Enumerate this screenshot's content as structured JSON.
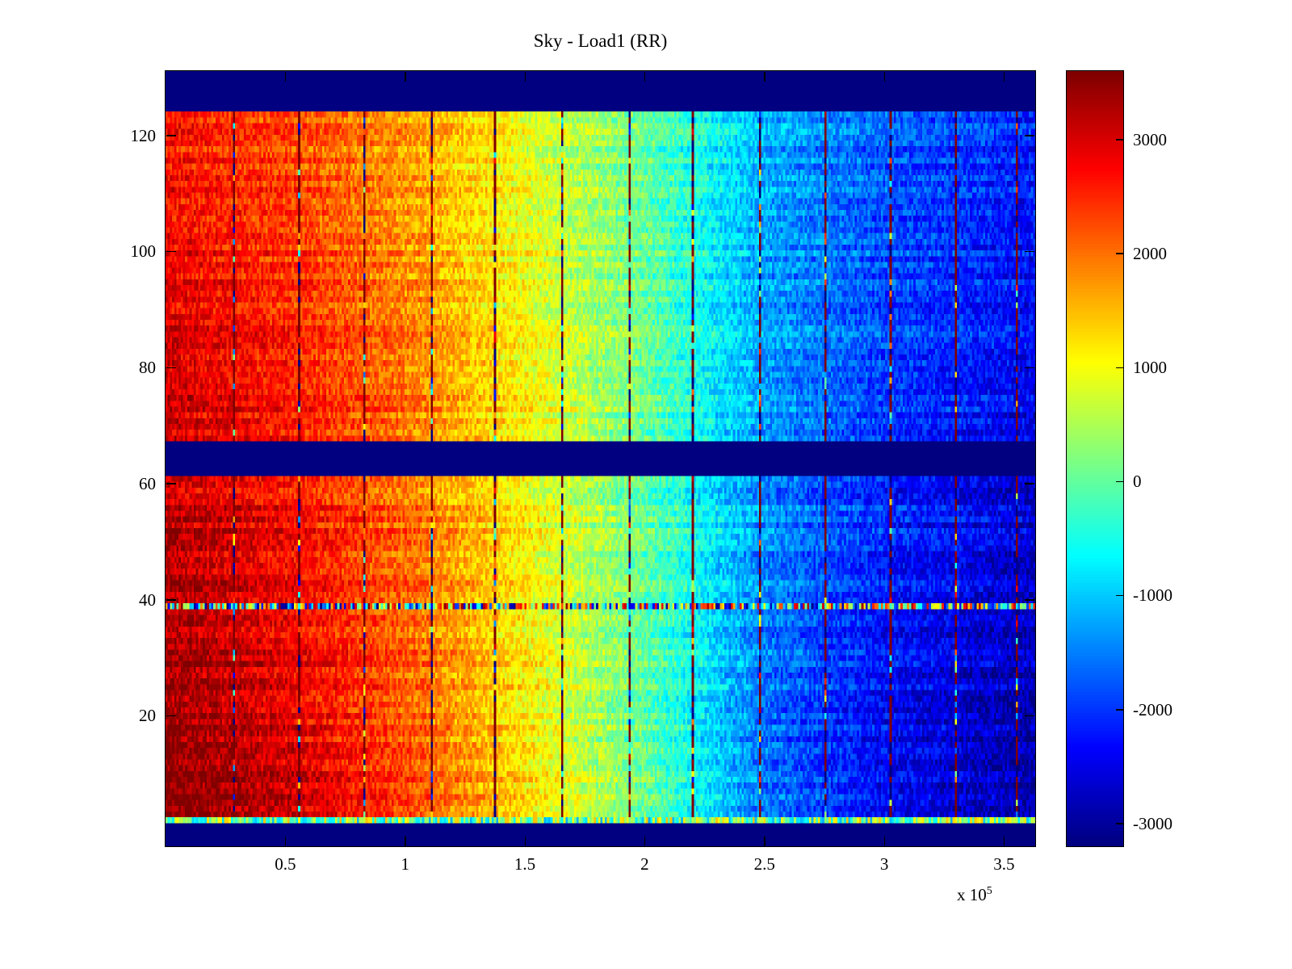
{
  "chart_data": {
    "type": "heatmap",
    "title": "Sky - Load1 (RR)",
    "colormap": "jet",
    "x_range": [
      0,
      363000
    ],
    "y_range": [
      -2.5,
      131.1
    ],
    "x_ticks": [
      {
        "value": 50000,
        "label": "0.5"
      },
      {
        "value": 100000,
        "label": "1"
      },
      {
        "value": 150000,
        "label": "1.5"
      },
      {
        "value": 200000,
        "label": "2"
      },
      {
        "value": 250000,
        "label": "2.5"
      },
      {
        "value": 300000,
        "label": "3"
      },
      {
        "value": 350000,
        "label": "3.5"
      }
    ],
    "x_exponent_prefix": "x 10",
    "x_exponent": "5",
    "y_ticks": [
      {
        "value": 20,
        "label": "20"
      },
      {
        "value": 40,
        "label": "40"
      },
      {
        "value": 60,
        "label": "60"
      },
      {
        "value": 80,
        "label": "80"
      },
      {
        "value": 100,
        "label": "100"
      },
      {
        "value": 120,
        "label": "120"
      }
    ],
    "colorbar": {
      "min": -3200,
      "max": 3600,
      "ticks": [
        {
          "value": 3000,
          "label": "3000"
        },
        {
          "value": 2000,
          "label": "2000"
        },
        {
          "value": 1000,
          "label": "1000"
        },
        {
          "value": 0,
          "label": "0"
        },
        {
          "value": -1000,
          "label": "-1000"
        },
        {
          "value": -2000,
          "label": "-2000"
        },
        {
          "value": -3000,
          "label": "-3000"
        }
      ]
    },
    "grid": {
      "nx": 400,
      "ny": 134
    },
    "gradient": {
      "x_points": [
        0,
        50000,
        100000,
        150000,
        200000,
        250000,
        300000,
        363000
      ],
      "values": [
        3200,
        2750,
        2050,
        1100,
        50,
        -1400,
        -2100,
        -2600
      ],
      "amp_bottom": 1.15,
      "amp_top": 0.8
    },
    "noise": {
      "cell": 900,
      "row": 500
    },
    "blank_bands_y": [
      [
        -2.5,
        1.3
      ],
      [
        61.0,
        67.0
      ],
      [
        124.0,
        131.1
      ]
    ],
    "special_rows": [
      {
        "y": 39.0,
        "type": "full-random"
      },
      {
        "y": 2.1,
        "type": "speckle",
        "range": [
          -1200,
          1500
        ]
      }
    ],
    "stripes_x": [
      28000,
      55500,
      83000,
      111000,
      137000,
      165000,
      193000,
      220000,
      248000,
      275000,
      302000,
      329000,
      355000
    ],
    "seed": 42
  }
}
